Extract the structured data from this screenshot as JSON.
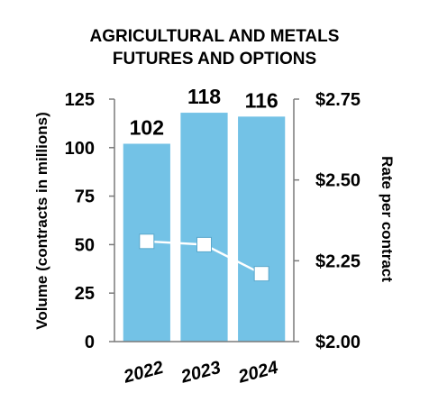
{
  "chart_data": {
    "type": "bar",
    "title_lines": [
      "AGRICULTURAL AND METALS",
      "FUTURES AND OPTIONS"
    ],
    "categories": [
      "2022",
      "2023",
      "2024"
    ],
    "series": [
      {
        "values": [
          102,
          118,
          116
        ],
        "data_labels": [
          "102",
          "118",
          "116"
        ],
        "axis": "left",
        "color": "#73C2E6"
      },
      {
        "type": "line",
        "values": [
          2.31,
          2.3,
          2.21
        ],
        "axis": "right",
        "color": "#ffffff"
      }
    ],
    "ylabel": "Volume (contracts in millions)",
    "y2label": "Rate per contract",
    "ylim": [
      0,
      125
    ],
    "y2lim": [
      2.0,
      2.75
    ],
    "yticks": [
      "0",
      "25",
      "50",
      "75",
      "100",
      "125"
    ],
    "y2ticks": [
      "$2.00",
      "$2.25",
      "$2.50",
      "$2.75"
    ],
    "grid": false
  }
}
